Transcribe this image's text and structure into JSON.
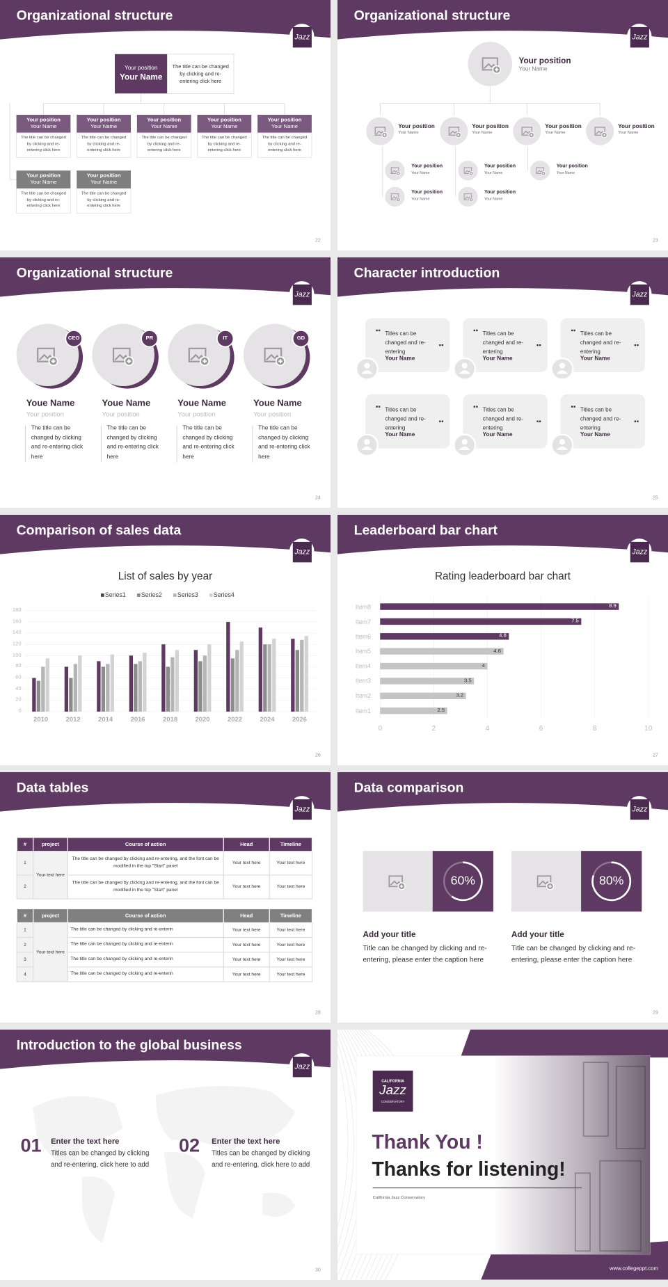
{
  "logo": {
    "name": "Jazz"
  },
  "slides": [
    {
      "number": "22",
      "title": "Organizational structure",
      "leader": {
        "position": "Your position",
        "name": "Your Name",
        "note": "The title can be changed by clicking and re-entering click here"
      },
      "members": [
        {
          "position": "Your position",
          "name": "Your Name",
          "note": "The title can be changed by clicking and re-entering click here"
        },
        {
          "position": "Your position",
          "name": "Your Name",
          "note": "The title can be changed by clicking and re-entering click here"
        },
        {
          "position": "Your position",
          "name": "Your Name",
          "note": "The title can be changed by clicking and re-entering click here"
        },
        {
          "position": "Your position",
          "name": "Your Name",
          "note": "The title can be changed by clicking and re-entering click here"
        },
        {
          "position": "Your position",
          "name": "Your Name",
          "note": "The title can be changed by clicking and re-entering click here"
        },
        {
          "position": "Your position",
          "name": "Your Name",
          "note": "The title can be changed by clicking and re-entering click here"
        },
        {
          "position": "Your position",
          "name": "Your Name",
          "note": "The title can be changed by clicking and re-entering click here"
        }
      ]
    },
    {
      "number": "23",
      "title": "Organizational structure",
      "leader": {
        "position": "Your position",
        "name": "Your Name"
      },
      "managers": [
        {
          "position": "Your position",
          "name": "Your Name"
        },
        {
          "position": "Your position",
          "name": "Your Name"
        },
        {
          "position": "Your position",
          "name": "Your Name"
        },
        {
          "position": "Your position",
          "name": "Your Name"
        }
      ],
      "staff": [
        {
          "position": "Your position",
          "name": "Your Name"
        },
        {
          "position": "Your position",
          "name": "Your Name"
        },
        {
          "position": "Your position",
          "name": "Your Name"
        },
        {
          "position": "Your position",
          "name": "Your Name"
        },
        {
          "position": "Your position",
          "name": "Your Name"
        }
      ]
    },
    {
      "number": "24",
      "title": "Organizational structure",
      "people": [
        {
          "role": "CEO",
          "name": "Youe Name",
          "position": "Your position",
          "note": "The title can be changed by clicking and re-entering click here"
        },
        {
          "role": "PR",
          "name": "Youe Name",
          "position": "Your position",
          "note": "The title can be changed by clicking and re-entering click here"
        },
        {
          "role": "IT",
          "name": "Youe Name",
          "position": "Your position",
          "note": "The title can be changed by clicking and re-entering click here"
        },
        {
          "role": "GD",
          "name": "Youe Name",
          "position": "Your position",
          "note": "The title can be changed by clicking and re-entering click here"
        }
      ]
    },
    {
      "number": "25",
      "title": "Character introduction",
      "quotes": [
        {
          "text": "Titles can be changed and re-entering",
          "name": "Your Name"
        },
        {
          "text": "Titles can be changed and re-entering",
          "name": "Your Name"
        },
        {
          "text": "Titles can be changed and re-entering",
          "name": "Your Name"
        },
        {
          "text": "Titles can be changed and re-entering",
          "name": "Your Name"
        },
        {
          "text": "Titles can be changed and re-entering",
          "name": "Your Name"
        },
        {
          "text": "Titles can be changed and re-entering",
          "name": "Your Name"
        }
      ]
    },
    {
      "number": "26",
      "title": "Comparison of sales data",
      "chart_data": {
        "type": "bar",
        "title": "List of sales by year",
        "categories": [
          "2010",
          "2012",
          "2014",
          "2016",
          "2018",
          "2020",
          "2022",
          "2024",
          "2026"
        ],
        "series": [
          {
            "name": "Series1",
            "color": "#5e3a63",
            "values": [
              60,
              80,
              90,
              100,
              120,
              110,
              160,
              150,
              130
            ]
          },
          {
            "name": "Series2",
            "color": "#8c8c8c",
            "values": [
              55,
              60,
              80,
              85,
              80,
              90,
              95,
              120,
              110
            ]
          },
          {
            "name": "Series3",
            "color": "#b5b5b5",
            "values": [
              80,
              85,
              85,
              90,
              97,
              100,
              110,
              120,
              128
            ]
          },
          {
            "name": "Series4",
            "color": "#d3d3d3",
            "values": [
              95,
              100,
              102,
              105,
              110,
              120,
              125,
              130,
              135
            ]
          }
        ],
        "ylim": [
          0,
          180
        ],
        "yticks": [
          0,
          20,
          40,
          60,
          80,
          100,
          120,
          140,
          160,
          180
        ],
        "grid": true
      }
    },
    {
      "number": "27",
      "title": "Leaderboard bar chart",
      "chart_data": {
        "type": "barh",
        "title": "Rating leaderboard bar chart",
        "categories": [
          "Item1",
          "Item2",
          "Item3",
          "Item4",
          "Item5",
          "Item6",
          "Item7",
          "Item8"
        ],
        "values": [
          2.5,
          3.2,
          3.5,
          4,
          4.6,
          4.8,
          7.5,
          8.9
        ],
        "colors": [
          "#c4c4c4",
          "#c4c4c4",
          "#c4c4c4",
          "#c4c4c4",
          "#c4c4c4",
          "#5e3a63",
          "#5e3a63",
          "#5e3a63"
        ],
        "xlim": [
          0,
          10
        ],
        "xticks": [
          0,
          2,
          4,
          6,
          8,
          10
        ],
        "grid": true
      }
    },
    {
      "number": "28",
      "title": "Data tables",
      "tables": [
        {
          "header_color": "#5e3a63",
          "header": [
            "#",
            "project",
            "Course of action",
            "Head",
            "Timeline"
          ],
          "project": "Your text here",
          "rows": [
            {
              "n": "1",
              "action": "The title can be changed by clicking and re-entering, and the font can be modified in the top \"Start\" panel",
              "head": "Your text here",
              "timeline": "Your text here"
            },
            {
              "n": "2",
              "action": "The title can be changed by clicking and re-entering, and the font can be modified in the top \"Start\" panel",
              "head": "Your text here",
              "timeline": "Your text here"
            }
          ]
        },
        {
          "header_color": "#808080",
          "header": [
            "#",
            "project",
            "Course of action",
            "Head",
            "Timeline"
          ],
          "project": "Your text here",
          "rows": [
            {
              "n": "1",
              "action": "The title can be changed by clicking and re-enterin",
              "head": "Your text here",
              "timeline": "Your text here"
            },
            {
              "n": "2",
              "action": "The title can be changed by clicking and re-enterin",
              "head": "Your text here",
              "timeline": "Your text here"
            },
            {
              "n": "3",
              "action": "The title can be changed by clicking and re-enterin",
              "head": "Your text here",
              "timeline": "Your text here"
            },
            {
              "n": "4",
              "action": "The title can be changed by clicking and re-enterin",
              "head": "Your text here",
              "timeline": "Your text here"
            }
          ]
        }
      ]
    },
    {
      "number": "29",
      "title": "Data comparison",
      "cards": [
        {
          "percent": 60,
          "label": "60%",
          "title": "Add your title",
          "text": "Title can be changed by clicking and re-entering, please enter the caption here"
        },
        {
          "percent": 80,
          "label": "80%",
          "title": "Add your title",
          "text": "Title can be changed by clicking and re-entering, please enter the caption here"
        }
      ]
    },
    {
      "number": "30",
      "title": "Introduction to the global business",
      "items": [
        {
          "number": "01",
          "title": "Enter the text here",
          "text": "Titles can be changed by clicking and re-entering, click here to add"
        },
        {
          "number": "02",
          "title": "Enter the text here",
          "text": "Titles can be changed by clicking and re-entering, click here to add"
        }
      ]
    },
    {
      "closing": {
        "logo_top": "CALIFORNIA",
        "logo_name": "Jazz",
        "logo_bottom": "CONSERVATORY",
        "title": "Thank You !",
        "subtitle": "Thanks for listening!",
        "org": "California Jazz Conservatory",
        "url": "www.collegeppt.com"
      }
    }
  ]
}
